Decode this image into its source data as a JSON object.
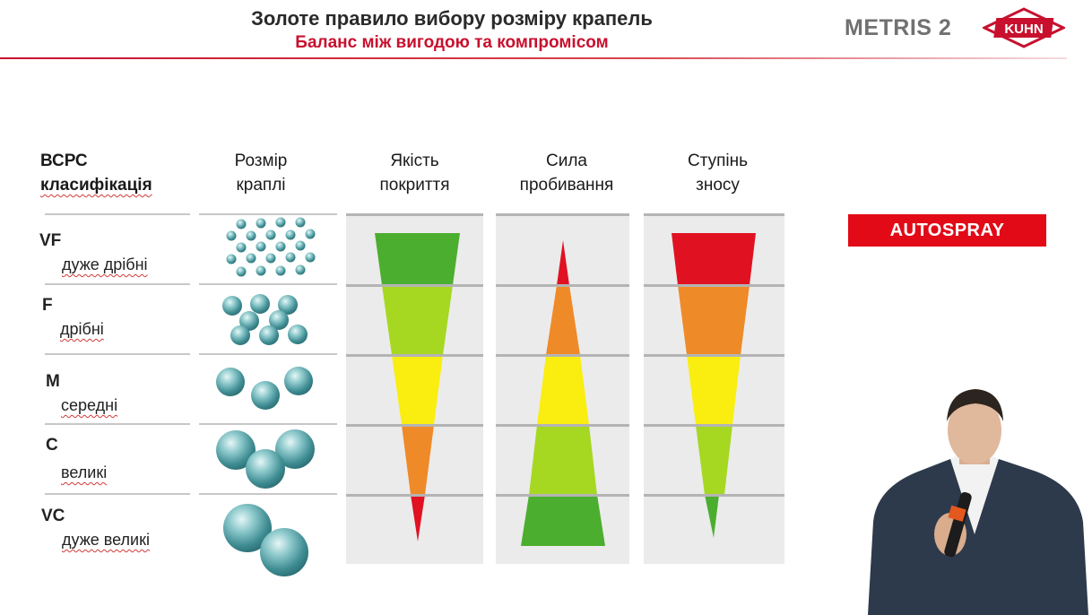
{
  "header": {
    "title": "Золоте правило вибору розміру крапель",
    "subtitle": "Баланс між вигодою та компромісом",
    "product": "METRIS 2",
    "logo_text": "KUHN"
  },
  "columns": {
    "classification": [
      "ВСРС",
      "класифікація"
    ],
    "size": [
      "Розмір",
      "краплі"
    ],
    "coverage": [
      "Якість",
      "покриття"
    ],
    "penetration": [
      "Сила",
      "пробивання"
    ],
    "drift": [
      "Ступінь",
      "зносу"
    ]
  },
  "classes": [
    {
      "code": "VF",
      "name": "дуже дрібні"
    },
    {
      "code": "F",
      "name": "дрібні"
    },
    {
      "code": "M",
      "name": "середні"
    },
    {
      "code": "C",
      "name": "великі"
    },
    {
      "code": "VC",
      "name": "дуже великі"
    }
  ],
  "autospray_label": "AUTOSPRAY",
  "colors": {
    "dark_green": "#4cae2f",
    "light_green": "#a6d821",
    "yellow": "#f9ee10",
    "orange": "#ef8a28",
    "red": "#e01222",
    "brand_red": "#c8102e"
  }
}
